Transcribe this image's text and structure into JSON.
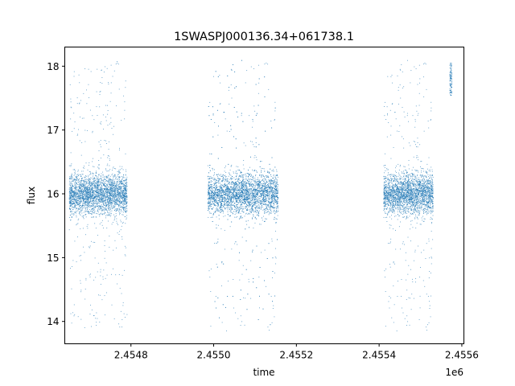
{
  "chart_data": {
    "type": "scatter",
    "title": "1SWASPJ000136.34+061738.1",
    "xlabel": "time",
    "ylabel": "flux",
    "x_offset_label": "1e6",
    "xlim": [
      2454640,
      2455605
    ],
    "ylim": [
      13.65,
      18.3
    ],
    "grid": false,
    "x_ticks": [
      {
        "value": 2454800,
        "label": "2.4548"
      },
      {
        "value": 2455000,
        "label": "2.4550"
      },
      {
        "value": 2455200,
        "label": "2.4552"
      },
      {
        "value": 2455400,
        "label": "2.4554"
      },
      {
        "value": 2455600,
        "label": "2.4556"
      }
    ],
    "y_ticks": [
      {
        "value": 14,
        "label": "14"
      },
      {
        "value": 15,
        "label": "15"
      },
      {
        "value": 16,
        "label": "16"
      },
      {
        "value": 17,
        "label": "17"
      },
      {
        "value": 18,
        "label": "18"
      }
    ],
    "marker_color": "#1f77b4",
    "series": [
      {
        "observing_seasons": [
          {
            "t_start": 2454650,
            "t_end": 2454790,
            "flux_median": 16.0,
            "flux_min": 13.9,
            "flux_max": 18.1
          },
          {
            "t_start": 2454985,
            "t_end": 2455155,
            "flux_median": 16.0,
            "flux_min": 13.85,
            "flux_max": 18.1
          },
          {
            "t_start": 2455410,
            "t_end": 2455530,
            "flux_median": 16.0,
            "flux_min": 13.85,
            "flux_max": 18.1
          },
          {
            "t_start": 2455570,
            "t_end": 2455575,
            "flux_median": 17.8,
            "flux_min": 17.55,
            "flux_max": 18.05
          }
        ]
      }
    ]
  }
}
